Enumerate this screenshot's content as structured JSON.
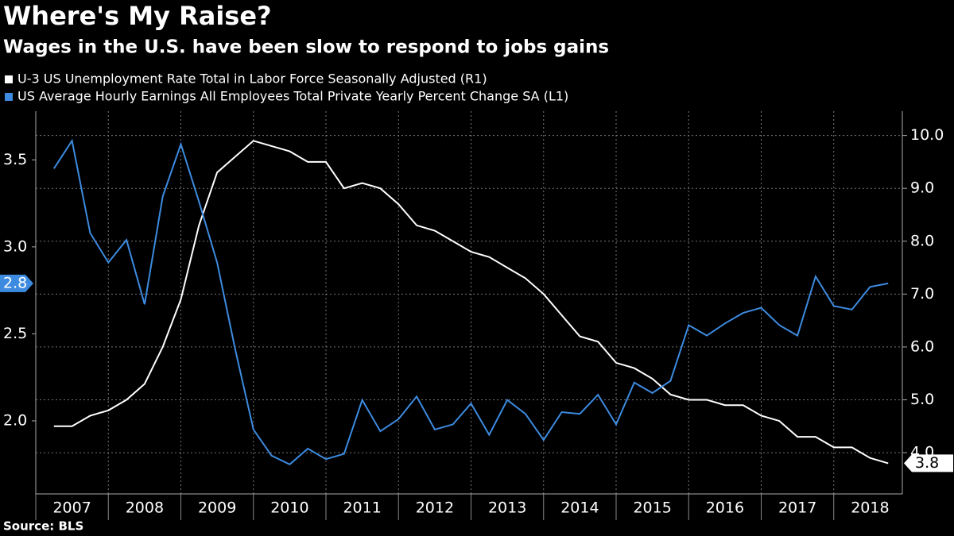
{
  "chart_data": {
    "type": "line",
    "title": "Where's My Raise?",
    "subtitle": "Wages in the U.S. have been slow to respond to jobs gains",
    "source": "Source: BLS",
    "x": [
      2007.25,
      2007.5,
      2007.75,
      2008,
      2008.25,
      2008.5,
      2008.75,
      2009,
      2009.25,
      2009.5,
      2009.75,
      2010,
      2010.25,
      2010.5,
      2010.75,
      2011,
      2011.25,
      2011.5,
      2011.75,
      2012,
      2012.25,
      2012.5,
      2012.75,
      2013,
      2013.25,
      2013.5,
      2013.75,
      2014,
      2014.25,
      2014.5,
      2014.75,
      2015,
      2015.25,
      2015.5,
      2015.75,
      2016,
      2016.25,
      2016.5,
      2016.75,
      2017,
      2017.25,
      2017.5,
      2017.75,
      2018,
      2018.25,
      2018.5,
      2018.75
    ],
    "xlim": [
      2007,
      2019
    ],
    "xticks": [
      {
        "value": 2007.5,
        "label": "2007"
      },
      {
        "value": 2008.5,
        "label": "2008"
      },
      {
        "value": 2009.5,
        "label": "2009"
      },
      {
        "value": 2010.5,
        "label": "2010"
      },
      {
        "value": 2011.5,
        "label": "2011"
      },
      {
        "value": 2012.5,
        "label": "2012"
      },
      {
        "value": 2013.5,
        "label": "2013"
      },
      {
        "value": 2014.5,
        "label": "2014"
      },
      {
        "value": 2015.5,
        "label": "2015"
      },
      {
        "value": 2016.5,
        "label": "2016"
      },
      {
        "value": 2017.5,
        "label": "2017"
      },
      {
        "value": 2018.5,
        "label": "2018"
      }
    ],
    "ylim": [
      1.58,
      3.78
    ],
    "yticks": [
      {
        "value": 2,
        "label": "2.0"
      },
      {
        "value": 2.5,
        "label": "2.5"
      },
      {
        "value": 3,
        "label": "3.0"
      },
      {
        "value": 3.5,
        "label": "3.5"
      }
    ],
    "y2lim": [
      3.22,
      10.46
    ],
    "y2ticks": [
      {
        "value": 4,
        "label": "4.0"
      },
      {
        "value": 5,
        "label": "5.0"
      },
      {
        "value": 6,
        "label": "6.0"
      },
      {
        "value": 7,
        "label": "7.0"
      },
      {
        "value": 8,
        "label": "8.0"
      },
      {
        "value": 9,
        "label": "9.0"
      },
      {
        "value": 10,
        "label": "10.0"
      }
    ],
    "grid": true,
    "series": [
      {
        "name": "U-3 US Unemployment Rate Total in Labor Force Seasonally Adjusted  (R1)",
        "color": "#ffffff",
        "axis": "y2",
        "end_label": "3.8",
        "values": [
          4.5,
          4.5,
          4.7,
          4.8,
          5.0,
          5.3,
          6.0,
          6.9,
          8.3,
          9.3,
          9.6,
          9.9,
          9.8,
          9.7,
          9.5,
          9.5,
          9.0,
          9.1,
          9.0,
          8.7,
          8.3,
          8.2,
          8.0,
          7.8,
          7.7,
          7.5,
          7.3,
          7.0,
          6.6,
          6.2,
          6.1,
          5.7,
          5.6,
          5.4,
          5.1,
          5.0,
          5.0,
          4.9,
          4.9,
          4.7,
          4.6,
          4.3,
          4.3,
          4.1,
          4.1,
          3.9,
          3.8
        ]
      },
      {
        "name": "US Average Hourly Earnings All Employees Total Private Yearly Percent Change SA  (L1)",
        "color": "#3d8be0",
        "axis": "y",
        "end_label": "2.8",
        "values": [
          3.45,
          3.61,
          3.08,
          2.91,
          3.04,
          2.67,
          3.29,
          3.59,
          3.26,
          2.91,
          2.41,
          1.95,
          1.8,
          1.75,
          1.84,
          1.78,
          1.81,
          2.12,
          1.94,
          2.01,
          2.14,
          1.95,
          1.98,
          2.1,
          1.92,
          2.12,
          2.04,
          1.89,
          2.05,
          2.04,
          2.15,
          1.98,
          2.22,
          2.16,
          2.23,
          2.55,
          2.49,
          2.56,
          2.62,
          2.65,
          2.55,
          2.49,
          2.83,
          2.66,
          2.64,
          2.77,
          2.79
        ]
      }
    ]
  }
}
